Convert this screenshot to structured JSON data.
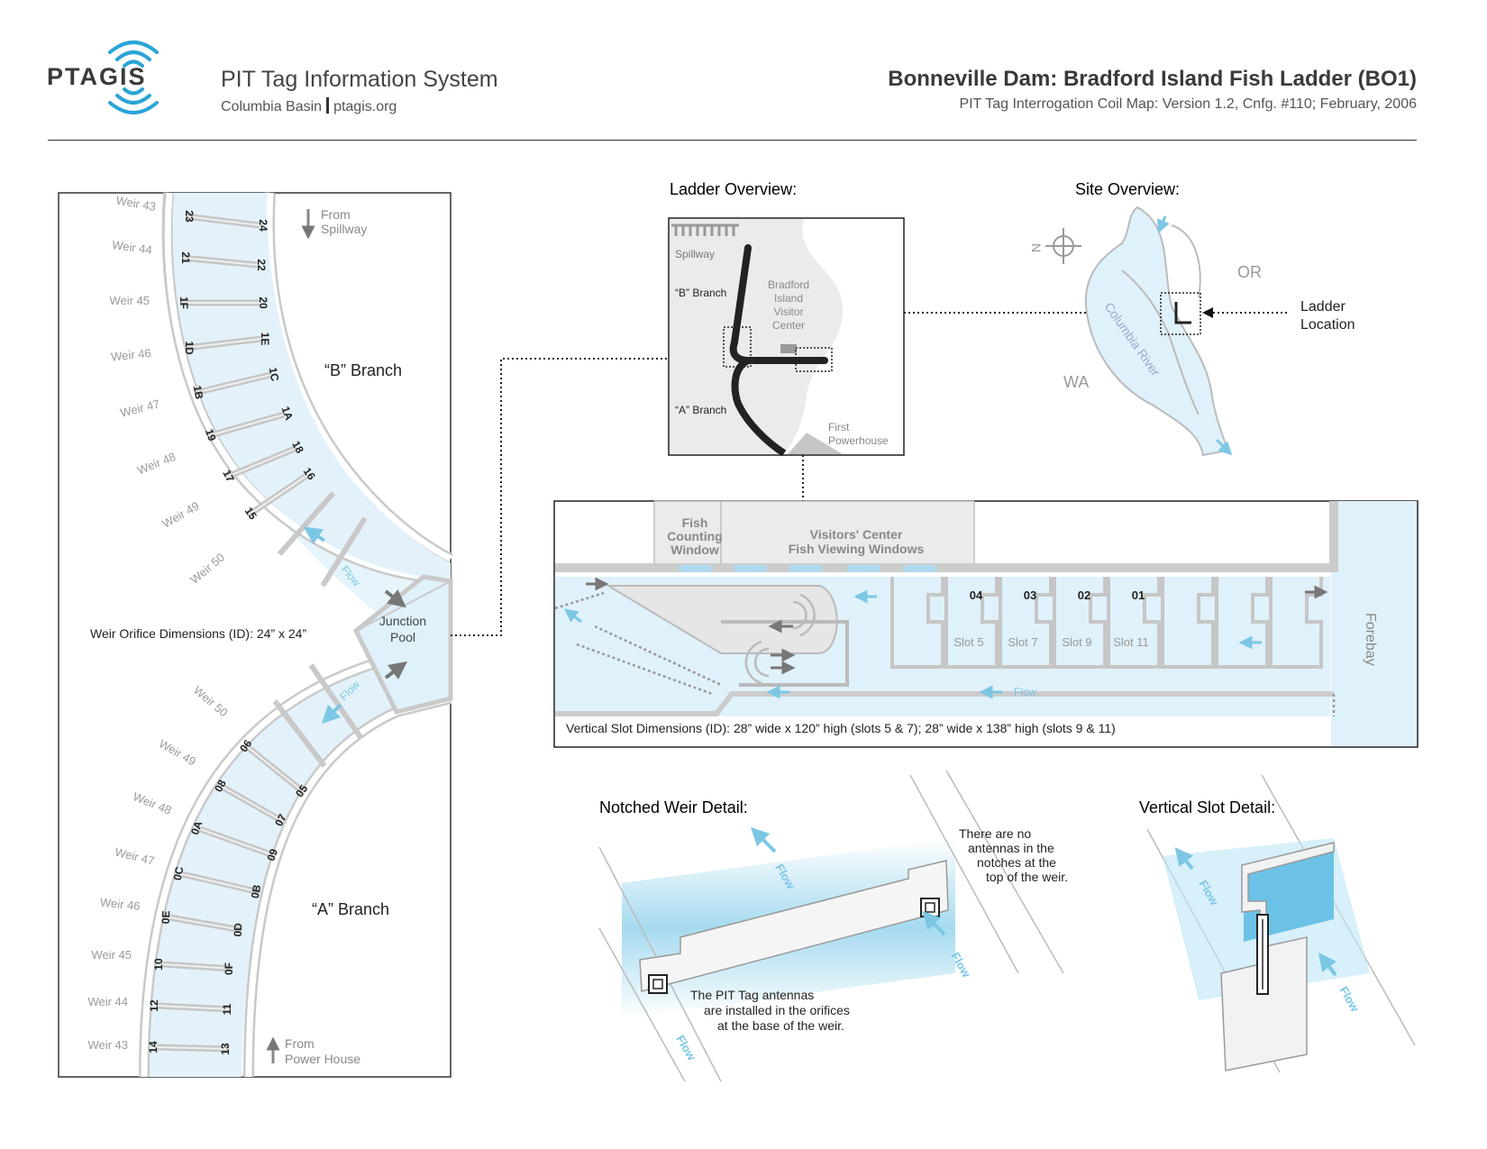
{
  "header": {
    "logo": "PTAGIS",
    "system_title": "PIT Tag Information System",
    "region": "Columbia Basin",
    "website": "ptagis.org",
    "title": "Bonneville Dam: Bradford Island Fish Ladder (BO1)",
    "subtitle": "PIT Tag Interrogation Coil Map: Version 1.2, Cnfg. #110; February, 2006"
  },
  "colors": {
    "water": "#dff1fb",
    "water_deep": "#9fd8ee",
    "wall": "#d6d6d6",
    "wall_stroke": "#9a9a9a",
    "arrow": "#666666",
    "flow_arrow": "#7cc7e4"
  },
  "ladder_map": {
    "b_branch_label": "“B” Branch",
    "a_branch_label": "“A” Branch",
    "from_spillway": [
      "From",
      "Spillway"
    ],
    "from_powerhouse": [
      "From",
      "Power House"
    ],
    "junction_pool": [
      "Junction",
      "Pool"
    ],
    "orifice_note": "Weir Orifice Dimensions (ID): 24” x 24”",
    "flow_label": "Flow",
    "b_weirs": [
      {
        "weir": "Weir 43",
        "inner": "23",
        "outer": "24"
      },
      {
        "weir": "Weir 44",
        "inner": "21",
        "outer": "22"
      },
      {
        "weir": "Weir 45",
        "inner": "1F",
        "outer": "20"
      },
      {
        "weir": "Weir 46",
        "inner": "1D",
        "outer": "1E"
      },
      {
        "weir": "Weir 47",
        "inner": "1B",
        "outer": "1C"
      },
      {
        "weir": "Weir 48",
        "inner": "19",
        "outer": "1A"
      },
      {
        "weir": "Weir 49",
        "inner": "17",
        "outer": "18"
      },
      {
        "weir": "Weir 50",
        "inner": "15",
        "outer": "16"
      }
    ],
    "a_weirs": [
      {
        "weir": "Weir 50",
        "inner": "06",
        "outer": "05"
      },
      {
        "weir": "Weir 49",
        "inner": "08",
        "outer": "07"
      },
      {
        "weir": "Weir 48",
        "inner": "0A",
        "outer": "09"
      },
      {
        "weir": "Weir 47",
        "inner": "0C",
        "outer": "0B"
      },
      {
        "weir": "Weir 46",
        "inner": "0E",
        "outer": "0D"
      },
      {
        "weir": "Weir 45",
        "inner": "10",
        "outer": "0F"
      },
      {
        "weir": "Weir 44",
        "inner": "12",
        "outer": "11"
      },
      {
        "weir": "Weir 43",
        "inner": "14",
        "outer": "13"
      }
    ]
  },
  "ladder_overview": {
    "title": "Ladder Overview:",
    "spillway": "Spillway",
    "b_branch": "“B” Branch",
    "a_branch": "“A” Branch",
    "visitor_center": [
      "Bradford",
      "Island",
      "Visitor",
      "Center"
    ],
    "powerhouse": [
      "First",
      "Powerhouse"
    ]
  },
  "site_overview": {
    "title": "Site Overview:",
    "north": "N",
    "or": "OR",
    "wa": "WA",
    "river": "Columbia River",
    "ladder_location": [
      "Ladder",
      "Location"
    ]
  },
  "slot_section": {
    "fish_counting": [
      "Fish",
      "Counting",
      "Window"
    ],
    "visitors_center": [
      "Visitors' Center",
      "Fish Viewing Windows"
    ],
    "slot_numbers": [
      "04",
      "03",
      "02",
      "01"
    ],
    "slot_names": [
      "Slot 5",
      "Slot 7",
      "Slot 9",
      "Slot 11"
    ],
    "forebay": "Forebay",
    "flow": "Flow",
    "dimensions": "Vertical Slot Dimensions (ID): 28” wide x 120” high (slots 5 & 7); 28” wide x 138” high (slots 9 & 11)"
  },
  "notched_weir": {
    "title": "Notched Weir Detail:",
    "note_top": [
      "There are no",
      "antennas in the",
      "notches at the",
      "top of the weir."
    ],
    "note_bottom": [
      "The PIT Tag antennas",
      "are installed in the orifices",
      "at the base of the weir."
    ],
    "flow": "Flow"
  },
  "vertical_slot": {
    "title": "Vertical Slot Detail:",
    "flow": "Flow"
  }
}
